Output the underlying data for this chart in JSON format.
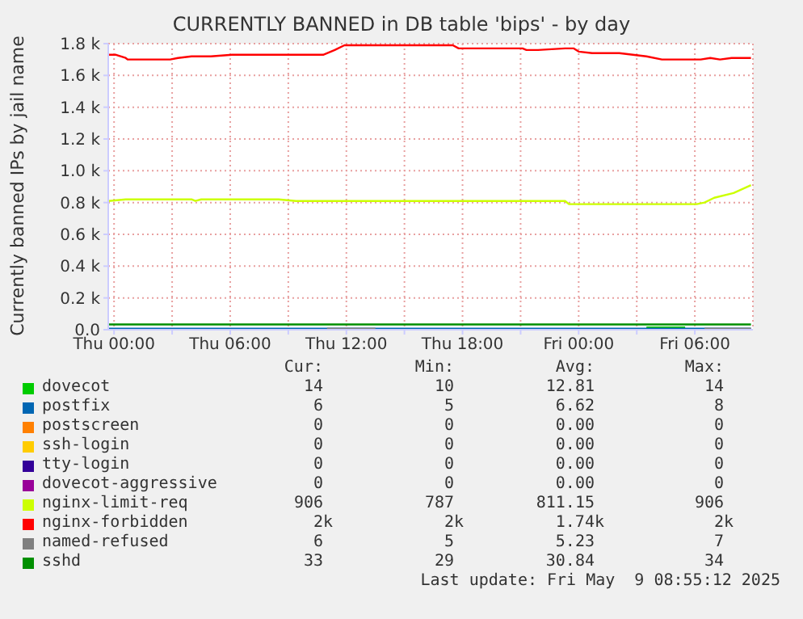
{
  "chart_data": {
    "type": "line",
    "title": "CURRENTLY BANNED in DB table 'bips' - by day",
    "ylabel": "Currently banned IPs by jail name",
    "xlim": [
      "2025-05-07T23:42",
      "2025-05-09T09:00"
    ],
    "xticks": [
      {
        "value": "2025-05-08T00:00",
        "label": "Thu 00:00"
      },
      {
        "value": "2025-05-08T03:00",
        "label": null
      },
      {
        "value": "2025-05-08T06:00",
        "label": "Thu 06:00"
      },
      {
        "value": "2025-05-08T09:00",
        "label": null
      },
      {
        "value": "2025-05-08T12:00",
        "label": "Thu 12:00"
      },
      {
        "value": "2025-05-08T15:00",
        "label": null
      },
      {
        "value": "2025-05-08T18:00",
        "label": "Thu 18:00"
      },
      {
        "value": "2025-05-08T21:00",
        "label": null
      },
      {
        "value": "2025-05-09T00:00",
        "label": "Fri 00:00"
      },
      {
        "value": "2025-05-09T03:00",
        "label": null
      },
      {
        "value": "2025-05-09T06:00",
        "label": "Fri 06:00"
      }
    ],
    "ylim": [
      0,
      1800
    ],
    "yticks": [
      {
        "value": 0,
        "label": "0.0"
      },
      {
        "value": 200,
        "label": "0.2 k"
      },
      {
        "value": 400,
        "label": "0.4 k"
      },
      {
        "value": 600,
        "label": "0.6 k"
      },
      {
        "value": 800,
        "label": "0.8 k"
      },
      {
        "value": 1000,
        "label": "1.0 k"
      },
      {
        "value": 1200,
        "label": "1.2 k"
      },
      {
        "value": 1400,
        "label": "1.4 k"
      },
      {
        "value": 1600,
        "label": "1.6 k"
      },
      {
        "value": 1800,
        "label": "1.8 k"
      }
    ],
    "grid": true,
    "legend": "bottom",
    "marker": "none",
    "line_style": "solid",
    "series": [
      {
        "name": "dovecot",
        "color": "#00cc00",
        "x": [
          "2025-05-09T03:30",
          "2025-05-09T05:30"
        ],
        "values": [
          14,
          14
        ]
      },
      {
        "name": "postfix",
        "color": "#0066b3",
        "x": [
          "2025-05-07T23:42",
          "2025-05-09T08:54"
        ],
        "values": [
          6,
          6
        ]
      },
      {
        "name": "postscreen",
        "color": "#ff8000"
      },
      {
        "name": "ssh-login",
        "color": "#ffcc00"
      },
      {
        "name": "tty-login",
        "color": "#330099"
      },
      {
        "name": "dovecot-aggressive",
        "color": "#990099"
      },
      {
        "name": "nginx-limit-req",
        "color": "#ccff00",
        "x": [
          "2025-05-07T23:42",
          "2025-05-08T00:36",
          "2025-05-08T04:00",
          "2025-05-08T04:12",
          "2025-05-08T04:30",
          "2025-05-08T05:12",
          "2025-05-08T08:00",
          "2025-05-08T08:30",
          "2025-05-08T09:24",
          "2025-05-08T15:30",
          "2025-05-08T15:48",
          "2025-05-08T23:18",
          "2025-05-08T23:30",
          "2025-05-09T06:06",
          "2025-05-09T06:30",
          "2025-05-09T07:00",
          "2025-05-09T08:00",
          "2025-05-09T08:54"
        ],
        "values": [
          810,
          820,
          820,
          810,
          820,
          820,
          820,
          820,
          810,
          810,
          810,
          810,
          790,
          790,
          800,
          830,
          860,
          910
        ]
      },
      {
        "name": "nginx-forbidden",
        "color": "#ff0000",
        "x": [
          "2025-05-07T23:42",
          "2025-05-08T00:06",
          "2025-05-08T00:36",
          "2025-05-08T00:42",
          "2025-05-08T02:54",
          "2025-05-08T03:18",
          "2025-05-08T04:00",
          "2025-05-08T05:00",
          "2025-05-08T06:06",
          "2025-05-08T07:30",
          "2025-05-08T10:48",
          "2025-05-08T11:24",
          "2025-05-08T11:54",
          "2025-05-08T17:30",
          "2025-05-08T17:48",
          "2025-05-08T21:06",
          "2025-05-08T21:18",
          "2025-05-08T21:54",
          "2025-05-08T23:18",
          "2025-05-08T23:45",
          "2025-05-09T00:00",
          "2025-05-09T00:42",
          "2025-05-09T02:06",
          "2025-05-09T03:30",
          "2025-05-09T04:18",
          "2025-05-09T06:18",
          "2025-05-09T06:48",
          "2025-05-09T07:18",
          "2025-05-09T07:54",
          "2025-05-09T08:54"
        ],
        "values": [
          1730,
          1730,
          1710,
          1700,
          1700,
          1710,
          1720,
          1720,
          1730,
          1730,
          1730,
          1760,
          1790,
          1790,
          1770,
          1770,
          1760,
          1760,
          1770,
          1770,
          1750,
          1740,
          1740,
          1720,
          1700,
          1700,
          1710,
          1700,
          1710,
          1710
        ]
      },
      {
        "name": "named-refused",
        "color": "#808080",
        "x": [
          "2025-05-08T11:00",
          "2025-05-08T13:30",
          "2025-05-08T20:00",
          "2025-05-09T06:30",
          "2025-05-09T08:54"
        ],
        "values": [
          6,
          6,
          null,
          6,
          6
        ]
      },
      {
        "name": "sshd",
        "color": "#008f00",
        "x": [
          "2025-05-07T23:42",
          "2025-05-09T08:54"
        ],
        "values": [
          33,
          33
        ]
      }
    ],
    "annotations": [
      "Cur:",
      "Min:",
      "Avg:",
      "Max:",
      "14",
      "10",
      "12.81",
      "14",
      "6",
      "5",
      "6.62",
      "8",
      "0",
      "0",
      "0.00",
      "0",
      "0",
      "0",
      "0.00",
      "0",
      "0",
      "0",
      "0.00",
      "0",
      "0",
      "0",
      "0.00",
      "0",
      "906",
      "787",
      "811.15",
      "906",
      "2k",
      "2k",
      "1.74k",
      "2k",
      "6",
      "5",
      "5.23",
      "7",
      "33",
      "29",
      "30.84",
      "34",
      "Last update: Fri May  9 08:55:12 2025"
    ]
  }
}
